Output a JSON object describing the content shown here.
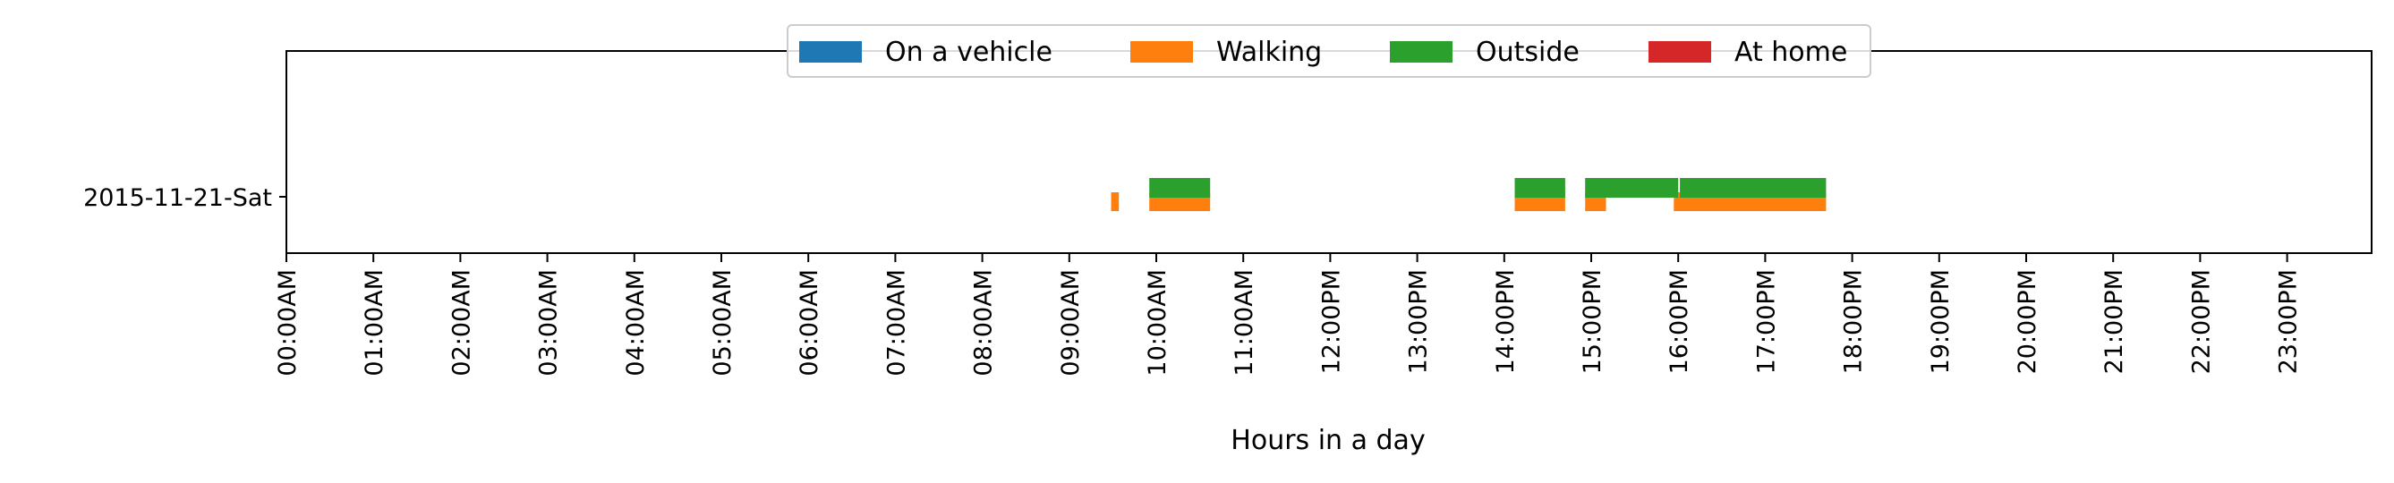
{
  "chart_data": {
    "type": "bar",
    "title": "",
    "xlabel": "Hours in a day",
    "ylabel": "",
    "xlim": [
      0,
      24
    ],
    "categories": [
      "2015-11-21-Sat"
    ],
    "x_ticks": [
      {
        "value": 0,
        "label": "00:00AM"
      },
      {
        "value": 1,
        "label": "01:00AM"
      },
      {
        "value": 2,
        "label": "02:00AM"
      },
      {
        "value": 3,
        "label": "03:00AM"
      },
      {
        "value": 4,
        "label": "04:00AM"
      },
      {
        "value": 5,
        "label": "05:00AM"
      },
      {
        "value": 6,
        "label": "06:00AM"
      },
      {
        "value": 7,
        "label": "07:00AM"
      },
      {
        "value": 8,
        "label": "08:00AM"
      },
      {
        "value": 9,
        "label": "09:00AM"
      },
      {
        "value": 10,
        "label": "10:00AM"
      },
      {
        "value": 11,
        "label": "11:00AM"
      },
      {
        "value": 12,
        "label": "12:00PM"
      },
      {
        "value": 13,
        "label": "13:00PM"
      },
      {
        "value": 14,
        "label": "14:00PM"
      },
      {
        "value": 15,
        "label": "15:00PM"
      },
      {
        "value": 16,
        "label": "16:00PM"
      },
      {
        "value": 17,
        "label": "17:00PM"
      },
      {
        "value": 18,
        "label": "18:00PM"
      },
      {
        "value": 19,
        "label": "19:00PM"
      },
      {
        "value": 20,
        "label": "20:00PM"
      },
      {
        "value": 21,
        "label": "21:00PM"
      },
      {
        "value": 22,
        "label": "22:00PM"
      },
      {
        "value": 23,
        "label": "23:00PM"
      }
    ],
    "legend_position": "top-center",
    "series": [
      {
        "name": "On a vehicle",
        "color": "#1f77b4",
        "intervals": []
      },
      {
        "name": "Walking",
        "color": "#ff7f0e",
        "intervals": [
          [
            9.48,
            9.57
          ],
          [
            9.92,
            10.62
          ],
          [
            14.12,
            14.7
          ],
          [
            14.93,
            15.17
          ],
          [
            15.95,
            17.7
          ]
        ]
      },
      {
        "name": "Outside",
        "color": "#2ca02c",
        "intervals": [
          [
            9.92,
            10.62
          ],
          [
            14.12,
            14.7
          ],
          [
            14.93,
            16.0
          ],
          [
            16.02,
            17.7
          ]
        ]
      },
      {
        "name": "At home",
        "color": "#d62728",
        "intervals": []
      }
    ]
  }
}
